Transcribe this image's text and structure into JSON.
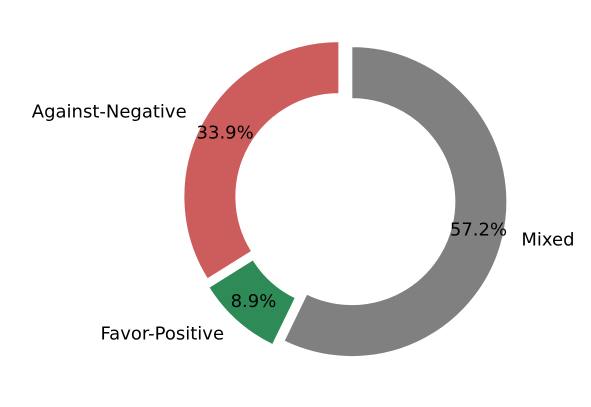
{
  "chart_data": {
    "type": "pie",
    "donut": true,
    "start_angle_deg": 90,
    "direction": "clockwise",
    "exploded": true,
    "legend": "none",
    "slices": [
      {
        "label": "Mixed",
        "value": 57.2,
        "pct_label": "57.2%",
        "color": "#808080"
      },
      {
        "label": "Favor-Positive",
        "value": 8.9,
        "pct_label": "8.9%",
        "color": "#2e8b57"
      },
      {
        "label": "Against-Negative",
        "value": 33.9,
        "pct_label": "33.9%",
        "color": "#cd5c5c"
      }
    ]
  }
}
